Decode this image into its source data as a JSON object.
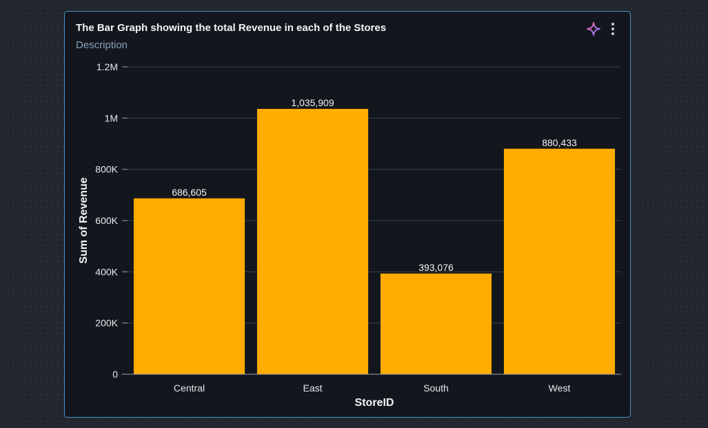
{
  "card": {
    "title": "The Bar Graph showing the total Revenue in each of the Stores",
    "description": "Description",
    "icons": [
      "sparkle-icon",
      "more-vertical-icon"
    ]
  },
  "colors": {
    "bar": "#ffab00",
    "accent_border": "#4a90c8",
    "card_bg": "#13171d"
  },
  "chart_data": {
    "type": "bar",
    "title": "The Bar Graph showing the total Revenue in each of the Stores",
    "xlabel": "StoreID",
    "ylabel": "Sum of Revenue",
    "categories": [
      "Central",
      "East",
      "South",
      "West"
    ],
    "values": [
      686605,
      1035909,
      393076,
      880433
    ],
    "value_labels": [
      "686,605",
      "1,035,909",
      "393,076",
      "880,433"
    ],
    "ylim": [
      0,
      1200000
    ],
    "yticks": [
      0,
      200000,
      400000,
      600000,
      800000,
      1000000,
      1200000
    ],
    "ytick_labels": [
      "0",
      "200K",
      "400K",
      "600K",
      "800K",
      "1M",
      "1.2M"
    ],
    "grid": true,
    "legend": "none"
  }
}
